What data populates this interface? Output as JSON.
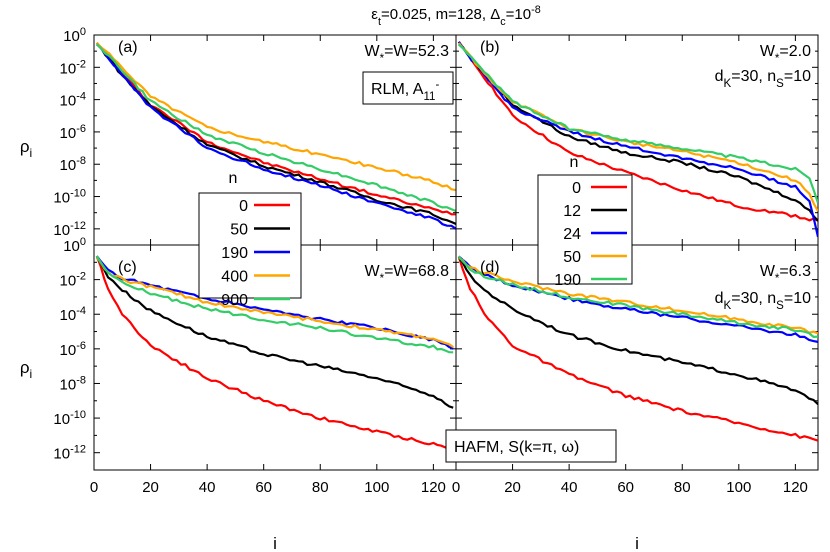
{
  "figure": {
    "title": {
      "pieces": [
        {
          "t": "ε"
        },
        {
          "t": "t",
          "sub": true
        },
        {
          "t": "=0.025, m=128, Δ"
        },
        {
          "t": "c",
          "sub": true
        },
        {
          "t": "=10"
        },
        {
          "t": "-8",
          "sup": true
        }
      ]
    },
    "ylabel": "ρi",
    "xlabel": "i",
    "xticks": [
      "0",
      "20",
      "40",
      "60",
      "80",
      "100",
      "120"
    ],
    "yticks": [
      {
        "exp": 0,
        "label": "10",
        "sup": "0"
      },
      {
        "exp": -2,
        "label": "10",
        "sup": "-2"
      },
      {
        "exp": -4,
        "label": "10",
        "sup": "-4"
      },
      {
        "exp": -6,
        "label": "10",
        "sup": "-6"
      },
      {
        "exp": -8,
        "label": "10",
        "sup": "-8"
      },
      {
        "exp": -10,
        "label": "10",
        "sup": "-10"
      },
      {
        "exp": -12,
        "label": "10",
        "sup": "-12"
      }
    ],
    "boxes": {
      "top": {
        "pieces": [
          {
            "t": "RLM, A"
          },
          {
            "t": "11",
            "sub": true
          },
          {
            "t": "-",
            "sup": true
          }
        ]
      },
      "bottom": {
        "pieces": [
          {
            "t": "HAFM, S(k=π, ω)"
          }
        ]
      }
    }
  },
  "chart_data": [
    {
      "type": "line",
      "panel": "(a)",
      "annotations": [
        "W*=W=52.3"
      ],
      "legend": {
        "title": "n",
        "position": "bottom-left",
        "names": [
          "0",
          "50",
          "190",
          "400",
          "900"
        ]
      },
      "xlim": [
        0,
        128
      ],
      "ylim_log10": [
        -13,
        0
      ],
      "yscale": "log",
      "x": [
        1,
        10,
        20,
        40,
        60,
        80,
        100,
        120,
        128
      ],
      "series": [
        {
          "name": "0",
          "color": "#ff0000",
          "log10_values": [
            -0.5,
            -2.4,
            -4.3,
            -6.6,
            -7.9,
            -8.9,
            -9.9,
            -10.8,
            -11.1
          ]
        },
        {
          "name": "50",
          "color": "#000000",
          "log10_values": [
            -0.5,
            -2.5,
            -4.4,
            -6.8,
            -8.1,
            -9.1,
            -10.2,
            -11.1,
            -11.7
          ]
        },
        {
          "name": "190",
          "color": "#0000ff",
          "log10_values": [
            -0.5,
            -2.5,
            -4.5,
            -7.0,
            -8.3,
            -9.3,
            -10.4,
            -11.4,
            -12.0
          ]
        },
        {
          "name": "400",
          "color": "#ffa500",
          "log10_values": [
            -0.5,
            -2.0,
            -3.8,
            -5.7,
            -6.6,
            -7.4,
            -8.2,
            -9.1,
            -9.6
          ]
        },
        {
          "name": "900",
          "color": "#33cc66",
          "log10_values": [
            -0.5,
            -2.2,
            -4.1,
            -6.2,
            -7.3,
            -8.3,
            -9.3,
            -10.4,
            -10.9
          ]
        }
      ]
    },
    {
      "type": "line",
      "panel": "(b)",
      "annotations": [
        "W*=2.0",
        "dK=30, nS=10"
      ],
      "legend": {
        "title": "n",
        "position": "bottom-left",
        "names": [
          "0",
          "12",
          "24",
          "50",
          "190"
        ]
      },
      "xlim": [
        0,
        128
      ],
      "ylim_log10": [
        -13,
        0
      ],
      "yscale": "log",
      "x": [
        1,
        10,
        20,
        40,
        60,
        80,
        100,
        120,
        125,
        128
      ],
      "series": [
        {
          "name": "0",
          "color": "#ff0000",
          "log10_values": [
            -0.5,
            -2.6,
            -5.0,
            -7.3,
            -8.5,
            -9.6,
            -10.6,
            -11.2,
            -11.4,
            -11.5
          ]
        },
        {
          "name": "12",
          "color": "#000000",
          "log10_values": [
            -0.5,
            -2.4,
            -4.3,
            -6.3,
            -7.3,
            -7.9,
            -8.8,
            -10.2,
            -10.9,
            -11.5
          ]
        },
        {
          "name": "24",
          "color": "#0000ff",
          "log10_values": [
            -0.5,
            -2.5,
            -4.5,
            -6.0,
            -6.9,
            -7.6,
            -8.3,
            -9.4,
            -10.3,
            -12.5
          ]
        },
        {
          "name": "50",
          "color": "#ffa500",
          "log10_values": [
            -0.5,
            -2.4,
            -4.1,
            -5.8,
            -6.6,
            -7.2,
            -7.9,
            -9.0,
            -9.8,
            -10.9
          ]
        },
        {
          "name": "190",
          "color": "#33cc66",
          "log10_values": [
            -0.5,
            -2.3,
            -4.1,
            -5.8,
            -6.5,
            -7.0,
            -7.6,
            -8.3,
            -8.8,
            -10.4
          ]
        }
      ]
    },
    {
      "type": "line",
      "panel": "(c)",
      "annotations": [
        "W*=W=68.8"
      ],
      "xlim": [
        0,
        128
      ],
      "ylim_log10": [
        -13,
        0
      ],
      "yscale": "log",
      "x": [
        1,
        5,
        10,
        20,
        40,
        60,
        80,
        100,
        120,
        127
      ],
      "series": [
        {
          "name": "0",
          "color": "#ff0000",
          "log10_values": [
            -0.7,
            -2.5,
            -4.0,
            -5.8,
            -7.7,
            -9.0,
            -10.0,
            -10.8,
            -11.5,
            -11.8
          ]
        },
        {
          "name": "50",
          "color": "#000000",
          "log10_values": [
            -0.7,
            -1.8,
            -2.6,
            -3.8,
            -5.3,
            -6.3,
            -7.0,
            -7.7,
            -8.7,
            -9.4
          ]
        },
        {
          "name": "190",
          "color": "#0000ff",
          "log10_values": [
            -0.7,
            -1.5,
            -1.9,
            -2.3,
            -3.1,
            -3.7,
            -4.3,
            -4.8,
            -5.5,
            -6.0
          ]
        },
        {
          "name": "400",
          "color": "#ffa500",
          "log10_values": [
            -0.7,
            -1.6,
            -2.0,
            -2.4,
            -3.3,
            -3.9,
            -4.4,
            -4.9,
            -5.4,
            -5.9
          ]
        },
        {
          "name": "900",
          "color": "#33cc66",
          "log10_values": [
            -0.7,
            -1.6,
            -2.2,
            -2.8,
            -3.7,
            -4.3,
            -4.8,
            -5.4,
            -5.9,
            -6.2
          ]
        }
      ]
    },
    {
      "type": "line",
      "panel": "(d)",
      "annotations": [
        "W*=6.3",
        "dK=30, nS=10"
      ],
      "xlim": [
        0,
        128
      ],
      "ylim_log10": [
        -13,
        0
      ],
      "yscale": "log",
      "x": [
        1,
        5,
        10,
        20,
        40,
        60,
        80,
        100,
        120,
        128
      ],
      "series": [
        {
          "name": "0",
          "color": "#ff0000",
          "log10_values": [
            -0.7,
            -2.5,
            -4.0,
            -5.8,
            -7.5,
            -8.7,
            -9.6,
            -10.3,
            -11.0,
            -11.3
          ]
        },
        {
          "name": "12",
          "color": "#000000",
          "log10_values": [
            -0.7,
            -1.8,
            -2.6,
            -3.7,
            -5.2,
            -6.1,
            -6.8,
            -7.5,
            -8.4,
            -9.2
          ]
        },
        {
          "name": "24",
          "color": "#0000ff",
          "log10_values": [
            -0.7,
            -1.3,
            -1.7,
            -2.3,
            -3.1,
            -3.7,
            -4.2,
            -4.7,
            -5.2,
            -5.6
          ]
        },
        {
          "name": "50",
          "color": "#ffa500",
          "log10_values": [
            -0.7,
            -1.3,
            -1.6,
            -2.1,
            -2.8,
            -3.3,
            -3.8,
            -4.3,
            -4.8,
            -5.1
          ]
        },
        {
          "name": "190",
          "color": "#33cc66",
          "log10_values": [
            -0.7,
            -1.4,
            -1.8,
            -2.3,
            -3.0,
            -3.5,
            -4.0,
            -4.5,
            -4.9,
            -5.3
          ]
        }
      ]
    }
  ]
}
